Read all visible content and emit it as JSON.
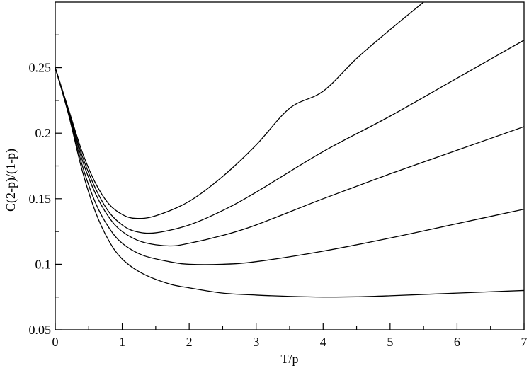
{
  "chart_data": {
    "type": "line",
    "title": "",
    "xlabel": "T/p",
    "ylabel": "C(2-p)/(1-p)",
    "xlim": [
      0,
      7
    ],
    "ylim": [
      0.05,
      0.3
    ],
    "x_ticks": [
      0,
      1,
      2,
      3,
      4,
      5,
      6,
      7
    ],
    "x_tick_labels": [
      "0",
      "1",
      "2",
      "3",
      "4",
      "5",
      "6",
      "7"
    ],
    "y_ticks": [
      0.05,
      0.1,
      0.15,
      0.2,
      0.25
    ],
    "y_tick_labels": [
      "0.05",
      "0.1",
      "0.15",
      "0.2",
      "0.25"
    ],
    "grid": false,
    "legend": "none",
    "line_color": "#000000",
    "series": [
      {
        "x": [
          0,
          0.2,
          0.4,
          0.6,
          0.8,
          1.0,
          1.2,
          1.5,
          2.0,
          2.5,
          3.0,
          3.5,
          4.0,
          4.5,
          5.0,
          5.5
        ],
        "y": [
          0.25,
          0.218,
          0.186,
          0.162,
          0.146,
          0.138,
          0.135,
          0.137,
          0.148,
          0.167,
          0.191,
          0.219,
          0.232,
          0.257,
          0.279,
          0.3
        ]
      },
      {
        "x": [
          0,
          0.2,
          0.4,
          0.6,
          0.8,
          1.0,
          1.2,
          1.5,
          2.0,
          2.5,
          3.0,
          4.0,
          5.0,
          6.0,
          7.0
        ],
        "y": [
          0.25,
          0.217,
          0.183,
          0.158,
          0.14,
          0.13,
          0.125,
          0.124,
          0.13,
          0.141,
          0.155,
          0.186,
          0.213,
          0.242,
          0.271
        ]
      },
      {
        "x": [
          0,
          0.2,
          0.4,
          0.6,
          0.8,
          1.0,
          1.3,
          1.7,
          2.0,
          2.5,
          3.0,
          4.0,
          5.0,
          6.0,
          7.0
        ],
        "y": [
          0.25,
          0.216,
          0.18,
          0.154,
          0.136,
          0.125,
          0.117,
          0.114,
          0.116,
          0.122,
          0.13,
          0.15,
          0.169,
          0.187,
          0.205
        ]
      },
      {
        "x": [
          0,
          0.2,
          0.4,
          0.6,
          0.8,
          1.0,
          1.3,
          1.7,
          2.0,
          2.5,
          3.0,
          4.0,
          5.0,
          6.0,
          7.0
        ],
        "y": [
          0.25,
          0.215,
          0.176,
          0.147,
          0.128,
          0.116,
          0.107,
          0.102,
          0.1,
          0.1,
          0.102,
          0.11,
          0.12,
          0.131,
          0.142
        ]
      },
      {
        "x": [
          0,
          0.2,
          0.4,
          0.6,
          0.8,
          1.0,
          1.3,
          1.7,
          2.0,
          2.5,
          3.0,
          3.5,
          4.0,
          4.5,
          5.0,
          6.0,
          7.0
        ],
        "y": [
          0.25,
          0.214,
          0.172,
          0.14,
          0.118,
          0.104,
          0.093,
          0.085,
          0.082,
          0.078,
          0.0765,
          0.0755,
          0.075,
          0.0752,
          0.076,
          0.078,
          0.08
        ]
      }
    ]
  }
}
